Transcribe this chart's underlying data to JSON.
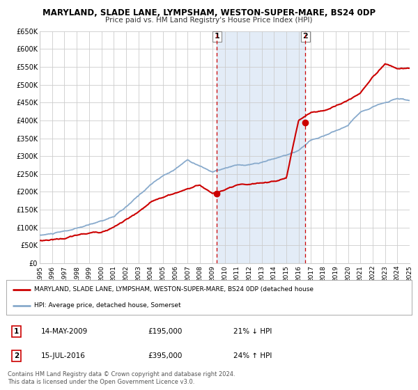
{
  "title": "MARYLAND, SLADE LANE, LYMPSHAM, WESTON-SUPER-MARE, BS24 0DP",
  "subtitle": "Price paid vs. HM Land Registry's House Price Index (HPI)",
  "bg_color": "#ffffff",
  "plot_bg_color": "#ffffff",
  "grid_color": "#cccccc",
  "red_color": "#cc0000",
  "blue_color": "#88aacc",
  "fill_color": "#dce8f5",
  "marker1_x": 2009.37,
  "marker1_y": 195000,
  "marker2_x": 2016.54,
  "marker2_y": 395000,
  "legend_line1": "MARYLAND, SLADE LANE, LYMPSHAM, WESTON-SUPER-MARE, BS24 0DP (detached house",
  "legend_line2": "HPI: Average price, detached house, Somerset",
  "annotation1_label": "1",
  "annotation1_date": "14-MAY-2009",
  "annotation1_price": "£195,000",
  "annotation1_hpi": "21% ↓ HPI",
  "annotation2_label": "2",
  "annotation2_date": "15-JUL-2016",
  "annotation2_price": "£395,000",
  "annotation2_hpi": "24% ↑ HPI",
  "footer": "Contains HM Land Registry data © Crown copyright and database right 2024.\nThis data is licensed under the Open Government Licence v3.0.",
  "ylim": [
    0,
    650000
  ],
  "xlim": [
    1995,
    2025
  ],
  "yticks": [
    0,
    50000,
    100000,
    150000,
    200000,
    250000,
    300000,
    350000,
    400000,
    450000,
    500000,
    550000,
    600000,
    650000
  ],
  "ytick_labels": [
    "£0",
    "£50K",
    "£100K",
    "£150K",
    "£200K",
    "£250K",
    "£300K",
    "£350K",
    "£400K",
    "£450K",
    "£500K",
    "£550K",
    "£600K",
    "£650K"
  ]
}
